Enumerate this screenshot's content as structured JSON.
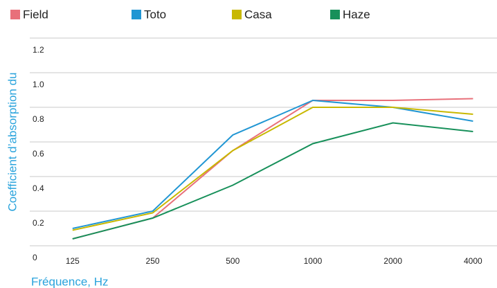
{
  "chart_data": {
    "type": "line",
    "x_label": "Fréquence, Hz",
    "y_label": "Coefficient d’absorption du",
    "categories": [
      "125",
      "250",
      "500",
      "1000",
      "2000",
      "4000"
    ],
    "series": [
      {
        "name": "Field",
        "color": "#e8707a",
        "values": [
          0.04,
          0.16,
          0.55,
          0.84,
          0.84,
          0.85
        ]
      },
      {
        "name": "Toto",
        "color": "#2196d3",
        "values": [
          0.1,
          0.2,
          0.64,
          0.84,
          0.8,
          0.72
        ]
      },
      {
        "name": "Casa",
        "color": "#c8b800",
        "values": [
          0.09,
          0.19,
          0.55,
          0.8,
          0.8,
          0.76
        ]
      },
      {
        "name": "Haze",
        "color": "#17905a",
        "values": [
          0.04,
          0.16,
          0.35,
          0.59,
          0.71,
          0.66
        ]
      }
    ],
    "ylim": [
      0,
      1.2
    ],
    "yticks": [
      0,
      0.2,
      0.4,
      0.6,
      0.8,
      {
        "value": 1,
        "label": "1.0"
      },
      1.2
    ],
    "grid": true
  }
}
